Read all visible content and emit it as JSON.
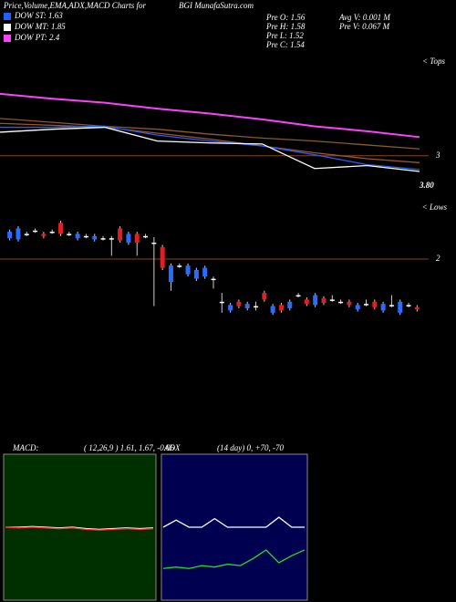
{
  "header": {
    "title": "Price,Volume,EMA,ADX,MACD Charts for",
    "site": "BGI MunafaSutra.com",
    "legend": [
      {
        "label": "DOW ST: 1.63",
        "color": "#2060ff"
      },
      {
        "label": "DOW MT: 1.85",
        "color": "#ffffff"
      },
      {
        "label": "DOW PT: 2.4",
        "color": "#ff40ff"
      }
    ],
    "stats": [
      "Pre  O: 1.56",
      "Pre  H: 1.58",
      "Pre  L: 1.52",
      "Pre  C: 1.54"
    ],
    "volume": [
      "Avg V: 0.001 M",
      "Pre  V: 0.067 M"
    ],
    "tops": "< Tops",
    "lows": "< Lows",
    "price_label": "3.80"
  },
  "chart_data": [
    {
      "type": "line",
      "ylim": [
        2.45,
        3.75
      ],
      "yticks": [
        3
      ],
      "series": [
        {
          "name": "EMA long",
          "color": "#ff40ff",
          "values": [
            3.63,
            3.58,
            3.54,
            3.48,
            3.43,
            3.37,
            3.3,
            3.25,
            3.19
          ]
        },
        {
          "name": "EMA mid",
          "color": "#8b5a2b",
          "values": [
            3.38,
            3.34,
            3.3,
            3.27,
            3.22,
            3.18,
            3.15,
            3.11,
            3.07
          ]
        },
        {
          "name": "EMA short",
          "color": "#a0522d",
          "values": [
            3.33,
            3.31,
            3.29,
            3.23,
            3.17,
            3.1,
            3.03,
            2.97,
            2.93
          ]
        },
        {
          "name": "EMA fast",
          "color": "#2060ff",
          "values": [
            3.29,
            3.29,
            3.3,
            3.21,
            3.15,
            3.1,
            3.01,
            2.91,
            2.86
          ]
        },
        {
          "name": "Price",
          "color": "#ffffff",
          "values": [
            3.24,
            3.27,
            3.29,
            3.15,
            3.13,
            3.12,
            2.87,
            2.9,
            2.84
          ]
        }
      ]
    },
    {
      "type": "candlestick",
      "ylim": [
        1.2,
        2.45
      ],
      "yticks": [
        2
      ],
      "up_color": "#2a6cff",
      "down_color": "#e02020",
      "flat_color": "#ffffff",
      "open": [
        2.19,
        2.18,
        2.23,
        2.26,
        2.23,
        2.25,
        2.33,
        2.23,
        2.19,
        2.21,
        2.18,
        2.19,
        2.19,
        2.28,
        2.15,
        2.23,
        2.21,
        2.15,
        2.11,
        1.79,
        1.94,
        1.86,
        1.82,
        1.84,
        1.82,
        1.61,
        1.53,
        1.61,
        1.55,
        1.57,
        1.69,
        1.51,
        1.58,
        1.55,
        1.67,
        1.63,
        1.58,
        1.64,
        1.63,
        1.61,
        1.61,
        1.54,
        1.59,
        1.61,
        1.53,
        1.58,
        1.51,
        1.58,
        1.56
      ],
      "high": [
        2.27,
        2.3,
        2.25,
        2.28,
        2.25,
        2.27,
        2.35,
        2.25,
        2.25,
        2.23,
        2.23,
        2.21,
        2.21,
        2.3,
        2.25,
        2.25,
        2.23,
        2.2,
        2.13,
        1.96,
        1.96,
        1.96,
        1.92,
        1.94,
        1.84,
        1.69,
        1.6,
        1.63,
        1.61,
        1.61,
        1.71,
        1.59,
        1.6,
        1.63,
        1.69,
        1.65,
        1.69,
        1.66,
        1.67,
        1.63,
        1.63,
        1.6,
        1.63,
        1.63,
        1.61,
        1.67,
        1.63,
        1.6,
        1.58
      ],
      "low": [
        2.17,
        2.16,
        2.21,
        2.24,
        2.19,
        2.23,
        2.21,
        2.21,
        2.17,
        2.19,
        2.16,
        2.17,
        2.03,
        2.15,
        2.13,
        2.03,
        2.19,
        1.57,
        1.9,
        1.71,
        1.92,
        1.84,
        1.8,
        1.82,
        1.73,
        1.51,
        1.51,
        1.55,
        1.53,
        1.53,
        1.61,
        1.49,
        1.51,
        1.53,
        1.65,
        1.57,
        1.56,
        1.58,
        1.61,
        1.59,
        1.56,
        1.52,
        1.57,
        1.54,
        1.51,
        1.56,
        1.49,
        1.56,
        1.52
      ],
      "close": [
        2.25,
        2.28,
        2.23,
        2.26,
        2.21,
        2.25,
        2.23,
        2.23,
        2.23,
        2.21,
        2.21,
        2.19,
        2.19,
        2.17,
        2.23,
        2.15,
        2.21,
        2.15,
        1.92,
        1.94,
        1.94,
        1.94,
        1.9,
        1.92,
        1.82,
        1.61,
        1.58,
        1.57,
        1.59,
        1.57,
        1.63,
        1.57,
        1.53,
        1.61,
        1.67,
        1.59,
        1.67,
        1.6,
        1.63,
        1.61,
        1.58,
        1.58,
        1.59,
        1.56,
        1.59,
        1.58,
        1.61,
        1.58,
        1.54
      ]
    },
    {
      "type": "line",
      "title": "MACD:",
      "subtitle": "( 12,26,9 ) 1.61, 1.67, -0.06",
      "ylim": [
        -1,
        1
      ],
      "series": [
        {
          "name": "MACD",
          "color": "#ffffff",
          "values": [
            0.0,
            0.0,
            0.01,
            0.0,
            -0.01,
            0.0,
            -0.02,
            -0.03,
            -0.02,
            -0.01,
            -0.02,
            -0.01
          ]
        },
        {
          "name": "Signal",
          "color": "#ff3030",
          "values": [
            0.0,
            -0.01,
            0.0,
            -0.01,
            -0.02,
            -0.01,
            -0.03,
            -0.04,
            -0.03,
            -0.02,
            -0.03,
            -0.02
          ]
        }
      ]
    },
    {
      "type": "line",
      "title": "ADX",
      "subtitle": "(14 day) 0, +70, -70",
      "ylim": [
        0,
        100
      ],
      "series": [
        {
          "name": "ADX",
          "color": "#ffffff",
          "values": [
            50,
            55,
            50,
            50,
            56,
            50,
            50,
            50,
            50,
            57,
            50,
            50
          ]
        },
        {
          "name": "DI",
          "color": "#20e020",
          "values": [
            21,
            22,
            21,
            23,
            22,
            24,
            23,
            28,
            34,
            25,
            30,
            34
          ]
        }
      ]
    }
  ]
}
